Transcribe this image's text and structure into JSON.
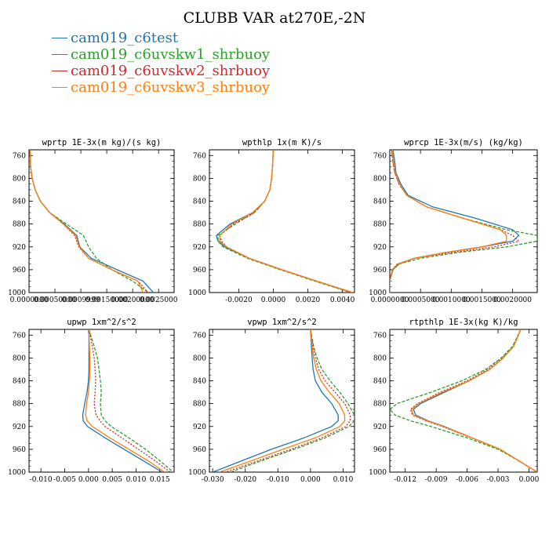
{
  "figure": {
    "title": "CLUBB VAR at270E,-2N"
  },
  "legend": [
    {
      "label": "cam019_c6test",
      "color": "#1f77b4"
    },
    {
      "label": "cam019_c6uvskw1_shrbuoy",
      "color": "#2ca02c"
    },
    {
      "label": "cam019_c6uvskw2_shrbuoy",
      "color": "#d62728"
    },
    {
      "label": "cam019_c6uvskw3_shrbuoy",
      "color": "#ff7f0e"
    }
  ],
  "colors": {
    "series": [
      "#1f77b4",
      "#2ca02c",
      "#d62728",
      "#ff7f0e"
    ]
  },
  "chart_data": [
    {
      "type": "line",
      "title": "wprtp  1E-3x(m kg)/(s kg)",
      "ylim": [
        1000,
        750
      ],
      "yticks": [
        760,
        800,
        840,
        880,
        920,
        960,
        1000
      ],
      "xlim": [
        0.0,
        0.0028
      ],
      "xticks": [
        0.0,
        0.0005,
        0.001,
        0.0015,
        0.002,
        0.0025
      ],
      "xtick_labels": [
        "0.0000000",
        "0.00050000",
        "0.0009999",
        "0.00150000",
        "0.00200000",
        "0.0025000"
      ],
      "y": [
        750,
        780,
        800,
        820,
        840,
        860,
        880,
        900,
        920,
        940,
        960,
        980,
        1000
      ],
      "series": [
        {
          "style": "solid",
          "values": [
            2e-05,
            3e-05,
            6e-05,
            0.00012,
            0.00022,
            0.0004,
            0.00068,
            0.00092,
            0.00098,
            0.0012,
            0.0017,
            0.0022,
            0.0024
          ]
        },
        {
          "style": "dashed",
          "values": [
            2e-05,
            3e-05,
            6e-05,
            0.00012,
            0.00022,
            0.0004,
            0.00072,
            0.00105,
            0.00115,
            0.0013,
            0.0016,
            0.002,
            0.0023
          ]
        },
        {
          "style": "dotted",
          "values": [
            2e-05,
            3e-05,
            6e-05,
            0.00012,
            0.00022,
            0.0004,
            0.00066,
            0.00088,
            0.00096,
            0.00115,
            0.0016,
            0.0021,
            0.0023
          ]
        },
        {
          "style": "solid",
          "values": [
            2e-05,
            3e-05,
            6e-05,
            0.00012,
            0.00022,
            0.0004,
            0.00066,
            0.0009,
            0.00097,
            0.00115,
            0.0016,
            0.0021,
            0.0022
          ]
        }
      ]
    },
    {
      "type": "line",
      "title": "wpthlp  1x(m K)/s",
      "ylim": [
        1000,
        750
      ],
      "yticks": [
        760,
        800,
        840,
        880,
        920,
        960,
        1000
      ],
      "xlim": [
        -0.0037,
        0.0047
      ],
      "xticks": [
        -0.002,
        0.0,
        0.002,
        0.004
      ],
      "xtick_labels": [
        "-0.0020",
        "0.0000",
        "0.0020",
        "0.0040"
      ],
      "y": [
        750,
        780,
        800,
        820,
        840,
        860,
        880,
        900,
        910,
        920,
        940,
        960,
        980,
        1000
      ],
      "series": [
        {
          "style": "solid",
          "values": [
            0.0,
            -5e-05,
            -0.0001,
            -0.0002,
            -0.0005,
            -0.0012,
            -0.0025,
            -0.0033,
            -0.0032,
            -0.0028,
            -0.0014,
            0.0005,
            0.0025,
            0.0046
          ]
        },
        {
          "style": "dashed",
          "values": [
            0.0,
            -5e-05,
            -0.0001,
            -0.0002,
            -0.0005,
            -0.0011,
            -0.0022,
            -0.0032,
            -0.0032,
            -0.0029,
            -0.0015,
            0.0004,
            0.0024,
            0.0045
          ]
        },
        {
          "style": "dotted",
          "values": [
            0.0,
            -5e-05,
            -0.0001,
            -0.0002,
            -0.0005,
            -0.0011,
            -0.0023,
            -0.0031,
            -0.003,
            -0.0027,
            -0.0014,
            0.0005,
            0.0025,
            0.0045
          ]
        },
        {
          "style": "solid",
          "values": [
            0.0,
            -5e-05,
            -0.0001,
            -0.0002,
            -0.0005,
            -0.0012,
            -0.0024,
            -0.0031,
            -0.0031,
            -0.0027,
            -0.0014,
            0.0005,
            0.0025,
            0.0046
          ]
        }
      ]
    },
    {
      "type": "line",
      "title": "wprcp  1E-3x(m/s) (kg/kg)",
      "ylim": [
        1000,
        750
      ],
      "yticks": [
        760,
        800,
        840,
        880,
        920,
        960,
        1000
      ],
      "xlim": [
        0.0,
        0.0024
      ],
      "xticks": [
        0.0,
        0.0005,
        0.001,
        0.0015,
        0.002
      ],
      "xtick_labels": [
        "0.0000000",
        "0.0005000",
        "0.0010000",
        "0.0015000",
        "0.0020000"
      ],
      "y": [
        750,
        770,
        790,
        810,
        830,
        850,
        870,
        890,
        900,
        910,
        920,
        930,
        940,
        950,
        960,
        980,
        1000
      ],
      "series": [
        {
          "style": "solid",
          "values": [
            5e-05,
            8e-05,
            0.0001,
            0.00018,
            0.0003,
            0.0007,
            0.0014,
            0.002,
            0.0021,
            0.002,
            0.0015,
            0.0009,
            0.0004,
            0.00015,
            5e-05,
            0.0,
            0.0
          ]
        },
        {
          "style": "dashed",
          "values": [
            3e-05,
            5e-05,
            8e-05,
            0.00015,
            0.00028,
            0.0006,
            0.0012,
            0.0019,
            0.0024,
            0.0024,
            0.0019,
            0.0011,
            0.0005,
            0.00015,
            5e-05,
            0.0,
            0.0
          ]
        },
        {
          "style": "dotted",
          "values": [
            3e-05,
            5e-05,
            8e-05,
            0.00015,
            0.00028,
            0.0006,
            0.0012,
            0.0018,
            0.002,
            0.0021,
            0.0017,
            0.001,
            0.0004,
            0.00012,
            4e-05,
            0.0,
            0.0
          ]
        },
        {
          "style": "solid",
          "values": [
            4e-05,
            6e-05,
            9e-05,
            0.00016,
            0.00028,
            0.0006,
            0.0012,
            0.0018,
            0.0019,
            0.0019,
            0.0015,
            0.0009,
            0.0004,
            0.00013,
            4e-05,
            0.0,
            0.0
          ]
        }
      ]
    },
    {
      "type": "line",
      "title": "upwp  1xm^2/s^2",
      "ylim": [
        1000,
        750
      ],
      "yticks": [
        760,
        800,
        840,
        880,
        920,
        960,
        1000
      ],
      "xlim": [
        -0.0125,
        0.018
      ],
      "xticks": [
        -0.01,
        -0.005,
        0.0,
        0.005,
        0.01,
        0.015
      ],
      "xtick_labels": [
        "-0.010",
        "-0.005",
        "0.000",
        "0.005",
        "0.010",
        "0.015"
      ],
      "y": [
        750,
        780,
        800,
        820,
        840,
        860,
        880,
        900,
        910,
        920,
        940,
        960,
        980,
        1000
      ],
      "series": [
        {
          "style": "solid",
          "values": [
            0.0001,
            0.0001,
            0.0001,
            0.0001,
            0.0,
            -0.0003,
            -0.0008,
            -0.0012,
            -0.0011,
            -0.0002,
            0.0035,
            0.0075,
            0.0115,
            0.0155
          ]
        },
        {
          "style": "dashed",
          "values": [
            0.0001,
            0.0012,
            0.0019,
            0.0022,
            0.0025,
            0.0027,
            0.0025,
            0.0027,
            0.0035,
            0.0048,
            0.0085,
            0.012,
            0.015,
            0.0178
          ]
        },
        {
          "style": "dotted",
          "values": [
            0.0001,
            0.0008,
            0.0012,
            0.0014,
            0.0015,
            0.0014,
            0.0012,
            0.0016,
            0.0024,
            0.0035,
            0.007,
            0.0105,
            0.014,
            0.0172
          ]
        },
        {
          "style": "solid",
          "values": [
            0.0001,
            0.0002,
            0.0003,
            0.0003,
            0.0002,
            0.0,
            -0.0004,
            -0.0006,
            -0.0003,
            0.0008,
            0.0045,
            0.0085,
            0.0125,
            0.016
          ]
        }
      ]
    },
    {
      "type": "line",
      "title": "vpwp  1xm^2/s^2",
      "ylim": [
        1000,
        750
      ],
      "yticks": [
        760,
        800,
        840,
        880,
        920,
        960,
        1000
      ],
      "xlim": [
        -0.031,
        0.0135
      ],
      "xticks": [
        -0.03,
        -0.02,
        -0.01,
        0.0,
        0.01
      ],
      "xtick_labels": [
        "-0.030",
        "-0.020",
        "-0.010",
        "0.000",
        "0.010"
      ],
      "y": [
        750,
        780,
        800,
        820,
        840,
        860,
        880,
        900,
        910,
        920,
        940,
        960,
        980,
        1000
      ],
      "series": [
        {
          "style": "solid",
          "values": [
            0.0,
            0.0003,
            0.0005,
            0.0008,
            0.0015,
            0.0035,
            0.0065,
            0.0085,
            0.0085,
            0.0065,
            -0.002,
            -0.012,
            -0.021,
            -0.03
          ]
        },
        {
          "style": "dashed",
          "values": [
            0.0,
            0.001,
            0.002,
            0.0035,
            0.006,
            0.009,
            0.0115,
            0.0135,
            0.0135,
            0.0118,
            0.0045,
            -0.005,
            -0.015,
            -0.0245
          ]
        },
        {
          "style": "dotted",
          "values": [
            0.0,
            0.0008,
            0.0015,
            0.0025,
            0.0045,
            0.0075,
            0.0105,
            0.0122,
            0.0122,
            0.0108,
            0.0035,
            -0.006,
            -0.016,
            -0.026
          ]
        },
        {
          "style": "solid",
          "values": [
            0.0,
            0.0005,
            0.001,
            0.0018,
            0.0032,
            0.0058,
            0.0088,
            0.0105,
            0.0105,
            0.009,
            0.0015,
            -0.0085,
            -0.018,
            -0.028
          ]
        }
      ]
    },
    {
      "type": "line",
      "title": "rtpthlp  1E-3x(kg K)/kg",
      "ylim": [
        1000,
        750
      ],
      "yticks": [
        760,
        800,
        840,
        880,
        920,
        960,
        1000
      ],
      "xlim": [
        -0.0135,
        0.0008
      ],
      "xticks": [
        -0.012,
        -0.009,
        -0.006,
        -0.003,
        0.0
      ],
      "xtick_labels": [
        "-0.012",
        "-0.009",
        "-0.006",
        "-0.003",
        "0.000"
      ],
      "y": [
        750,
        780,
        800,
        820,
        840,
        860,
        880,
        890,
        900,
        910,
        920,
        940,
        960,
        980,
        1000
      ],
      "series": [
        {
          "style": "solid",
          "values": [
            -0.0008,
            -0.0015,
            -0.0025,
            -0.0038,
            -0.0058,
            -0.0082,
            -0.0105,
            -0.0112,
            -0.011,
            -0.0098,
            -0.0082,
            -0.0055,
            -0.0028,
            -0.001,
            0.0008
          ]
        },
        {
          "style": "dashed",
          "values": [
            -0.0008,
            -0.0016,
            -0.0027,
            -0.0042,
            -0.0065,
            -0.0095,
            -0.0128,
            -0.0135,
            -0.013,
            -0.0115,
            -0.0095,
            -0.006,
            -0.003,
            -0.001,
            0.0008
          ]
        },
        {
          "style": "dotted",
          "values": [
            -0.0008,
            -0.0015,
            -0.0026,
            -0.004,
            -0.006,
            -0.0086,
            -0.0108,
            -0.0115,
            -0.0113,
            -0.01,
            -0.0084,
            -0.0056,
            -0.0028,
            -0.001,
            0.0008
          ]
        },
        {
          "style": "solid",
          "values": [
            -0.0008,
            -0.0015,
            -0.0025,
            -0.0038,
            -0.0058,
            -0.0084,
            -0.0107,
            -0.0114,
            -0.0112,
            -0.0099,
            -0.0083,
            -0.0055,
            -0.0028,
            -0.001,
            0.0008
          ]
        }
      ]
    }
  ]
}
